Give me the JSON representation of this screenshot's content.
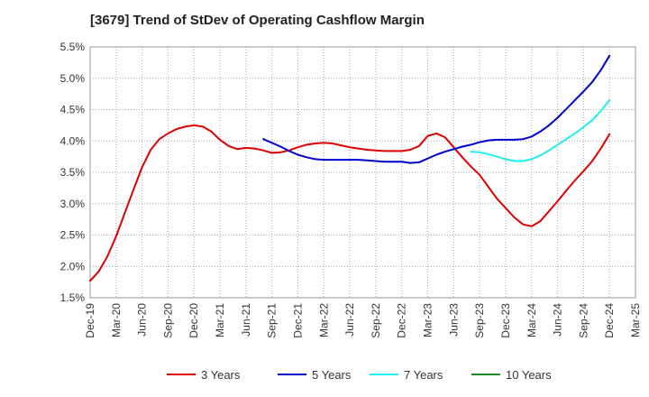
{
  "chart_data": {
    "type": "line",
    "title": "[3679]  Trend of StDev of Operating Cashflow Margin",
    "xlabel": "",
    "ylabel": "",
    "y_unit": "%",
    "ylim": [
      1.5,
      5.5
    ],
    "y_ticks": [
      "5.5%",
      "5.0%",
      "4.5%",
      "4.0%",
      "3.5%",
      "3.0%",
      "2.5%",
      "2.0%",
      "1.5%"
    ],
    "y_tick_values": [
      5.5,
      5.0,
      4.5,
      4.0,
      3.5,
      3.0,
      2.5,
      2.0,
      1.5
    ],
    "x_ticks": [
      "Dec-19",
      "Mar-20",
      "Jun-20",
      "Sep-20",
      "Dec-20",
      "Mar-21",
      "Jun-21",
      "Sep-21",
      "Dec-21",
      "Mar-22",
      "Jun-22",
      "Sep-22",
      "Dec-22",
      "Mar-23",
      "Jun-23",
      "Sep-23",
      "Dec-23",
      "Mar-24",
      "Jun-24",
      "Sep-24",
      "Dec-24",
      "Mar-25"
    ],
    "grid": true,
    "legend_position": "bottom",
    "series": [
      {
        "name": "3 Years",
        "color": "#dd0000",
        "points": [
          [
            "Dec-19",
            1.77
          ],
          [
            "Jan-20",
            1.92
          ],
          [
            "Feb-20",
            2.16
          ],
          [
            "Mar-20",
            2.48
          ],
          [
            "Apr-20",
            2.85
          ],
          [
            "May-20",
            3.22
          ],
          [
            "Jun-20",
            3.58
          ],
          [
            "Jul-20",
            3.86
          ],
          [
            "Aug-20",
            4.03
          ],
          [
            "Sep-20",
            4.12
          ],
          [
            "Oct-20",
            4.19
          ],
          [
            "Nov-20",
            4.23
          ],
          [
            "Dec-20",
            4.25
          ],
          [
            "Jan-21",
            4.23
          ],
          [
            "Feb-21",
            4.15
          ],
          [
            "Mar-21",
            4.02
          ],
          [
            "Apr-21",
            3.92
          ],
          [
            "May-21",
            3.87
          ],
          [
            "Jun-21",
            3.89
          ],
          [
            "Jul-21",
            3.88
          ],
          [
            "Aug-21",
            3.85
          ],
          [
            "Sep-21",
            3.81
          ],
          [
            "Oct-21",
            3.82
          ],
          [
            "Nov-21",
            3.85
          ],
          [
            "Dec-21",
            3.9
          ],
          [
            "Jan-22",
            3.94
          ],
          [
            "Feb-22",
            3.96
          ],
          [
            "Mar-22",
            3.97
          ],
          [
            "Apr-22",
            3.96
          ],
          [
            "May-22",
            3.93
          ],
          [
            "Jun-22",
            3.9
          ],
          [
            "Jul-22",
            3.88
          ],
          [
            "Aug-22",
            3.86
          ],
          [
            "Sep-22",
            3.85
          ],
          [
            "Oct-22",
            3.84
          ],
          [
            "Nov-22",
            3.84
          ],
          [
            "Dec-22",
            3.84
          ],
          [
            "Jan-23",
            3.86
          ],
          [
            "Feb-23",
            3.92
          ],
          [
            "Mar-23",
            4.08
          ],
          [
            "Apr-23",
            4.12
          ],
          [
            "May-23",
            4.06
          ],
          [
            "Jun-23",
            3.9
          ],
          [
            "Jul-23",
            3.74
          ],
          [
            "Aug-23",
            3.59
          ],
          [
            "Sep-23",
            3.46
          ],
          [
            "Oct-23",
            3.27
          ],
          [
            "Nov-23",
            3.08
          ],
          [
            "Dec-23",
            2.93
          ],
          [
            "Jan-24",
            2.78
          ],
          [
            "Feb-24",
            2.67
          ],
          [
            "Mar-24",
            2.64
          ],
          [
            "Apr-24",
            2.72
          ],
          [
            "May-24",
            2.88
          ],
          [
            "Jun-24",
            3.04
          ],
          [
            "Jul-24",
            3.21
          ],
          [
            "Aug-24",
            3.37
          ],
          [
            "Sep-24",
            3.52
          ],
          [
            "Oct-24",
            3.68
          ],
          [
            "Nov-24",
            3.88
          ],
          [
            "Dec-24",
            4.11
          ]
        ]
      },
      {
        "name": "5 Years",
        "color": "#0000cc",
        "points": [
          [
            "Aug-21",
            4.03
          ],
          [
            "Sep-21",
            3.97
          ],
          [
            "Oct-21",
            3.91
          ],
          [
            "Nov-21",
            3.84
          ],
          [
            "Dec-21",
            3.78
          ],
          [
            "Jan-22",
            3.74
          ],
          [
            "Feb-22",
            3.71
          ],
          [
            "Mar-22",
            3.7
          ],
          [
            "Apr-22",
            3.7
          ],
          [
            "May-22",
            3.7
          ],
          [
            "Jun-22",
            3.7
          ],
          [
            "Jul-22",
            3.7
          ],
          [
            "Aug-22",
            3.69
          ],
          [
            "Sep-22",
            3.68
          ],
          [
            "Oct-22",
            3.67
          ],
          [
            "Nov-22",
            3.67
          ],
          [
            "Dec-22",
            3.67
          ],
          [
            "Jan-23",
            3.65
          ],
          [
            "Feb-23",
            3.66
          ],
          [
            "Mar-23",
            3.72
          ],
          [
            "Apr-23",
            3.78
          ],
          [
            "May-23",
            3.83
          ],
          [
            "Jun-23",
            3.87
          ],
          [
            "Jul-23",
            3.91
          ],
          [
            "Aug-23",
            3.94
          ],
          [
            "Sep-23",
            3.98
          ],
          [
            "Oct-23",
            4.01
          ],
          [
            "Nov-23",
            4.02
          ],
          [
            "Dec-23",
            4.02
          ],
          [
            "Jan-24",
            4.02
          ],
          [
            "Feb-24",
            4.03
          ],
          [
            "Mar-24",
            4.07
          ],
          [
            "Apr-24",
            4.15
          ],
          [
            "May-24",
            4.25
          ],
          [
            "Jun-24",
            4.37
          ],
          [
            "Jul-24",
            4.51
          ],
          [
            "Aug-24",
            4.65
          ],
          [
            "Sep-24",
            4.79
          ],
          [
            "Oct-24",
            4.94
          ],
          [
            "Nov-24",
            5.13
          ],
          [
            "Dec-24",
            5.36
          ]
        ]
      },
      {
        "name": "7 Years",
        "color": "#22eeee",
        "points": [
          [
            "Aug-23",
            3.83
          ],
          [
            "Sep-23",
            3.82
          ],
          [
            "Oct-23",
            3.79
          ],
          [
            "Nov-23",
            3.75
          ],
          [
            "Dec-23",
            3.71
          ],
          [
            "Jan-24",
            3.68
          ],
          [
            "Feb-24",
            3.68
          ],
          [
            "Mar-24",
            3.71
          ],
          [
            "Apr-24",
            3.77
          ],
          [
            "May-24",
            3.85
          ],
          [
            "Jun-24",
            3.94
          ],
          [
            "Jul-24",
            4.03
          ],
          [
            "Aug-24",
            4.12
          ],
          [
            "Sep-24",
            4.22
          ],
          [
            "Oct-24",
            4.33
          ],
          [
            "Nov-24",
            4.48
          ],
          [
            "Dec-24",
            4.65
          ]
        ]
      },
      {
        "name": "10 Years",
        "color": "#228822",
        "points": []
      }
    ]
  }
}
